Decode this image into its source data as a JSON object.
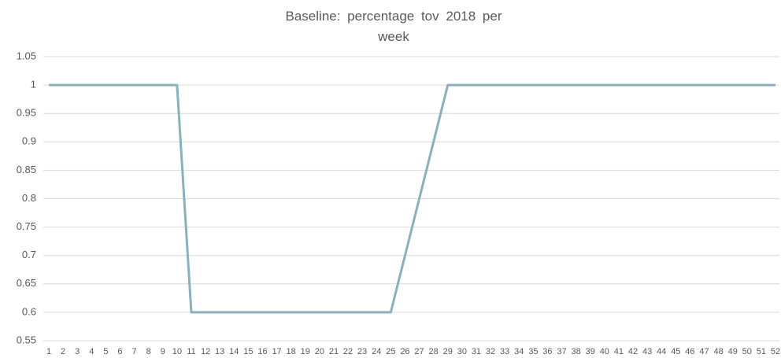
{
  "chart_data": {
    "type": "line",
    "title": "Baseline: percentage tov 2018 per week",
    "categories": [
      "1",
      "2",
      "3",
      "4",
      "5",
      "6",
      "7",
      "8",
      "9",
      "10",
      "11",
      "12",
      "13",
      "14",
      "15",
      "16",
      "17",
      "18",
      "19",
      "20",
      "21",
      "22",
      "23",
      "24",
      "25",
      "26",
      "27",
      "28",
      "29",
      "30",
      "31",
      "32",
      "33",
      "34",
      "35",
      "36",
      "37",
      "38",
      "39",
      "40",
      "41",
      "42",
      "43",
      "44",
      "45",
      "46",
      "47",
      "48",
      "49",
      "50",
      "51",
      "52"
    ],
    "values": [
      1,
      1,
      1,
      1,
      1,
      1,
      1,
      1,
      1,
      1,
      0.6,
      0.6,
      0.6,
      0.6,
      0.6,
      0.6,
      0.6,
      0.6,
      0.6,
      0.6,
      0.6,
      0.6,
      0.6,
      0.6,
      0.6,
      0.7,
      0.8,
      0.9,
      1,
      1,
      1,
      1,
      1,
      1,
      1,
      1,
      1,
      1,
      1,
      1,
      1,
      1,
      1,
      1,
      1,
      1,
      1,
      1,
      1,
      1,
      1,
      1
    ],
    "color": "#86b2c0",
    "ylim": [
      0.55,
      1.05
    ],
    "yticks": [
      0.55,
      0.6,
      0.65,
      0.7,
      0.75,
      0.8,
      0.85,
      0.9,
      0.95,
      1,
      1.05
    ],
    "grid": true
  }
}
